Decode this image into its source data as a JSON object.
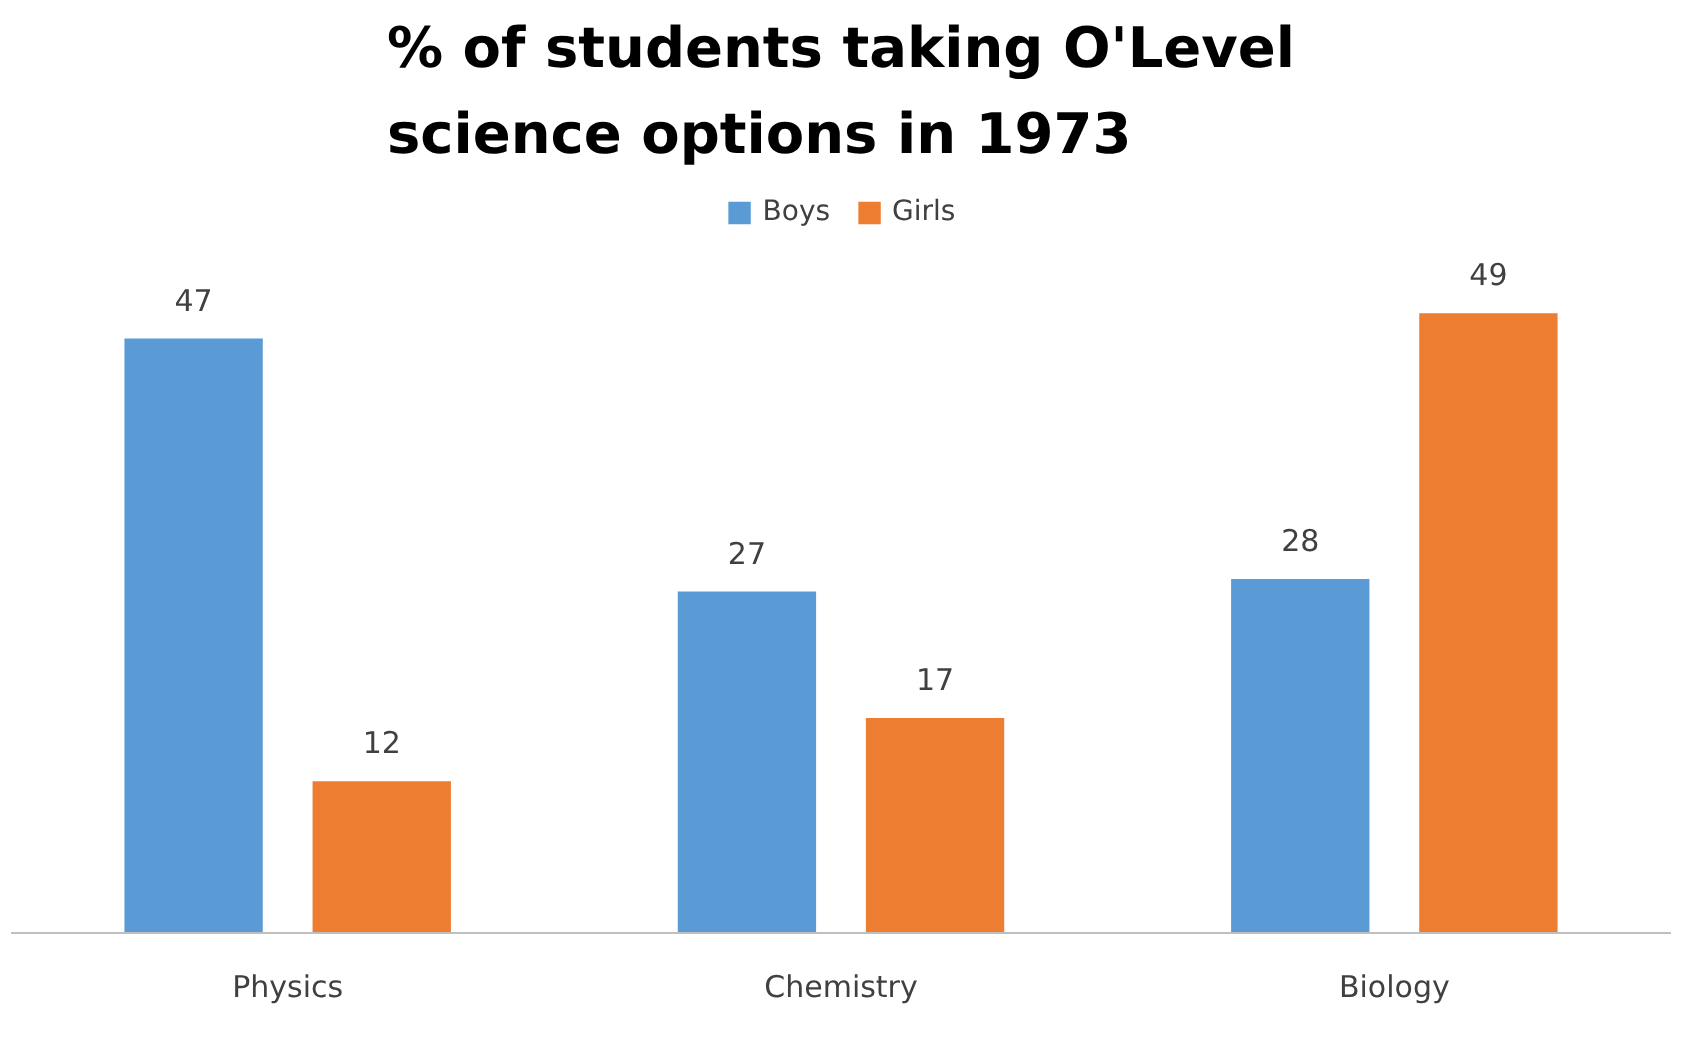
{
  "chart_data": {
    "type": "bar",
    "title": "% of students taking O'Level science options in 1973",
    "categories": [
      "Physics",
      "Chemistry",
      "Biology"
    ],
    "series": [
      {
        "name": "Boys",
        "color": "#5b9bd5",
        "values": [
          47,
          27,
          28
        ]
      },
      {
        "name": "Girls",
        "color": "#ed7d31",
        "values": [
          12,
          17,
          49
        ]
      }
    ],
    "data_labels": true,
    "legend": "top",
    "grid": false
  }
}
